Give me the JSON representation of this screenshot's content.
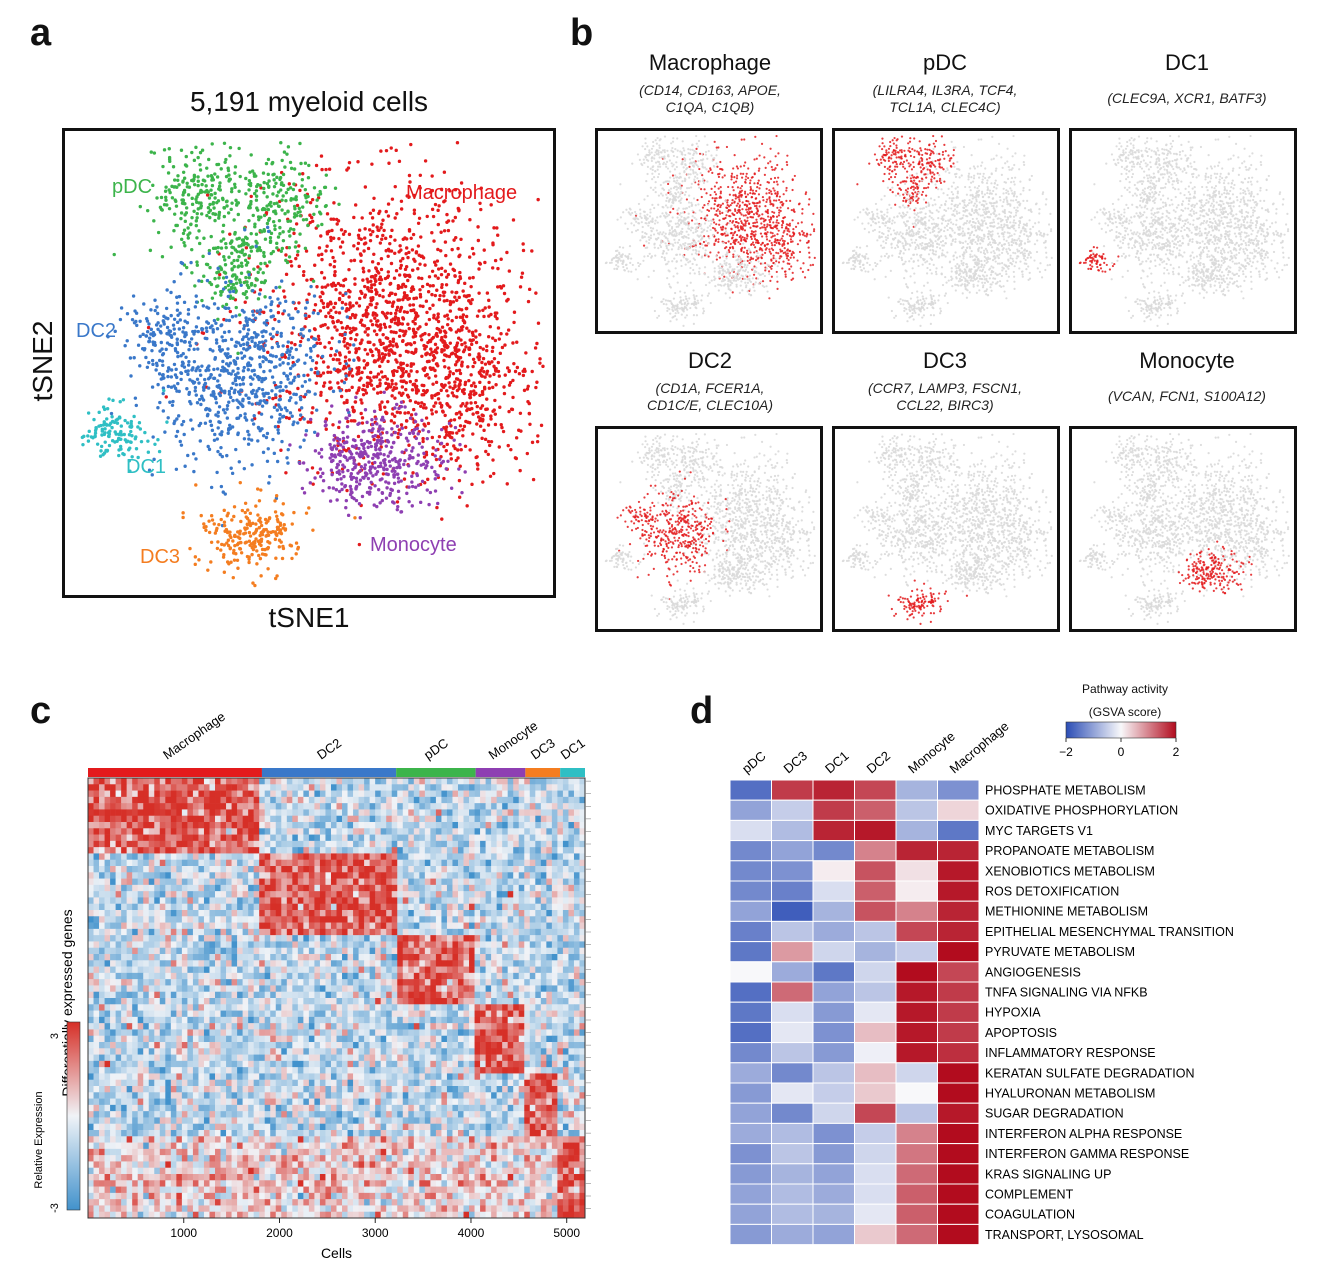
{
  "panel_a": {
    "letter": "a",
    "title": "5,191 myeloid cells",
    "xlabel": "tSNE1",
    "ylabel": "tSNE2",
    "clusters": [
      {
        "name": "pDC",
        "color": "#3cb44b"
      },
      {
        "name": "Macrophage",
        "color": "#e31a1c"
      },
      {
        "name": "DC2",
        "color": "#3a78c9"
      },
      {
        "name": "DC1",
        "color": "#2fbfc4"
      },
      {
        "name": "DC3",
        "color": "#f47d20"
      },
      {
        "name": "Monocyte",
        "color": "#8e3fb2"
      }
    ]
  },
  "panel_b": {
    "letter": "b",
    "plots": [
      {
        "title": "Macrophage",
        "markers": [
          "(CD14, CD163, APOE,",
          "C1QA, C1QB)"
        ]
      },
      {
        "title": "pDC",
        "markers": [
          "(LILRA4, IL3RA, TCF4,",
          "TCL1A, CLEC4C)"
        ]
      },
      {
        "title": "DC1",
        "markers": [
          "(CLEC9A, XCR1, BATF3)"
        ]
      },
      {
        "title": "DC2",
        "markers": [
          "(CD1A, FCER1A,",
          "CD1C/E, CLEC10A)"
        ]
      },
      {
        "title": "DC3",
        "markers": [
          "(CCR7, LAMP3, FSCN1,",
          "CCL22, BIRC3)"
        ]
      },
      {
        "title": "Monocyte",
        "markers": [
          "(VCAN, FCN1, S100A12)"
        ]
      }
    ]
  },
  "panel_c": {
    "letter": "c",
    "groups": [
      {
        "name": "Macrophage",
        "color": "#e31a1c"
      },
      {
        "name": "DC2",
        "color": "#3a78c9"
      },
      {
        "name": "pDC",
        "color": "#3cb44b"
      },
      {
        "name": "Monocyte",
        "color": "#8e3fb2"
      },
      {
        "name": "DC3",
        "color": "#f47d20"
      },
      {
        "name": "DC1",
        "color": "#2fbfc4"
      }
    ],
    "ylabel": "Differentially expressed genes",
    "xlabel": "Cells",
    "xticks": [
      "1000",
      "2000",
      "3000",
      "4000",
      "5000"
    ],
    "colorbar_label": "Relative Expression",
    "colorbar_max": "3",
    "colorbar_min": "-3"
  },
  "panel_d": {
    "letter": "d",
    "legend_title_1": "Pathway activity",
    "legend_title_2": "(GSVA score)",
    "legend_ticks": [
      "−2",
      "0",
      "2"
    ],
    "columns": [
      "pDC",
      "DC3",
      "DC1",
      "DC2",
      "Monocyte",
      "Macrophage"
    ],
    "rows": [
      {
        "name": "PHOSPHATE METABOLISM",
        "values": [
          -1.6,
          1.6,
          1.8,
          1.5,
          -0.8,
          -1.2
        ]
      },
      {
        "name": "OXIDATIVE PHOSPHORYLATION",
        "values": [
          -1.0,
          -0.5,
          1.6,
          1.3,
          -0.6,
          0.3
        ]
      },
      {
        "name": "MYC TARGETS V1",
        "values": [
          -0.3,
          -0.7,
          1.8,
          1.9,
          -0.8,
          -1.5
        ]
      },
      {
        "name": "PROPANOATE METABOLISM",
        "values": [
          -1.3,
          -1.0,
          -1.3,
          1.0,
          1.8,
          1.8
        ]
      },
      {
        "name": "XENOBIOTICS METABOLISM",
        "values": [
          -1.3,
          -1.2,
          0.1,
          1.4,
          0.2,
          1.9
        ]
      },
      {
        "name": "ROS DETOXIFICATION",
        "values": [
          -1.3,
          -1.4,
          -0.3,
          1.3,
          0.1,
          1.9
        ]
      },
      {
        "name": "METHIONINE METABOLISM",
        "values": [
          -1.0,
          -1.8,
          -0.8,
          1.4,
          1.0,
          1.8
        ]
      },
      {
        "name": "EPITHELIAL MESENCHYMAL TRANSITION",
        "values": [
          -1.4,
          -0.6,
          -0.9,
          -0.6,
          1.5,
          1.8
        ]
      },
      {
        "name": "PYRUVATE METABOLISM",
        "values": [
          -1.5,
          0.8,
          -0.4,
          -0.8,
          -0.5,
          2.0
        ]
      },
      {
        "name": "ANGIOGENESIS",
        "values": [
          0.0,
          -0.9,
          -1.5,
          -0.4,
          2.0,
          1.5
        ]
      },
      {
        "name": "TNFA SIGNALING VIA NFKB",
        "values": [
          -1.6,
          1.2,
          -1.0,
          -0.6,
          1.9,
          1.6
        ]
      },
      {
        "name": "HYPOXIA",
        "values": [
          -1.5,
          -0.3,
          -1.1,
          -0.2,
          1.9,
          1.6
        ]
      },
      {
        "name": "APOPTOSIS",
        "values": [
          -1.6,
          -0.2,
          -1.2,
          0.5,
          1.9,
          1.6
        ]
      },
      {
        "name": "INFLAMMATORY RESPONSE",
        "values": [
          -1.3,
          -0.6,
          -1.1,
          -0.1,
          1.9,
          1.7
        ]
      },
      {
        "name": "KERATAN SULFATE DEGRADATION",
        "values": [
          -0.9,
          -1.3,
          -0.6,
          0.5,
          -0.4,
          2.0
        ]
      },
      {
        "name": "HYALURONAN METABOLISM",
        "values": [
          -1.1,
          -0.2,
          -0.5,
          0.4,
          0.0,
          2.0
        ]
      },
      {
        "name": "SUGAR DEGRADATION",
        "values": [
          -1.0,
          -1.3,
          -0.4,
          1.5,
          -0.6,
          1.9
        ]
      },
      {
        "name": "INTERFERON ALPHA RESPONSE",
        "values": [
          -0.9,
          -0.7,
          -1.2,
          -0.5,
          1.0,
          2.0
        ]
      },
      {
        "name": "INTERFERON GAMMA RESPONSE",
        "values": [
          -1.2,
          -0.6,
          -1.1,
          -0.4,
          1.1,
          2.0
        ]
      },
      {
        "name": "KRAS SIGNALING UP",
        "values": [
          -1.1,
          -0.8,
          -1.0,
          -0.3,
          1.2,
          2.0
        ]
      },
      {
        "name": "COMPLEMENT",
        "values": [
          -1.0,
          -0.7,
          -0.9,
          -0.3,
          1.3,
          2.0
        ]
      },
      {
        "name": "COAGULATION",
        "values": [
          -1.0,
          -0.7,
          -0.8,
          -0.2,
          1.3,
          2.0
        ]
      },
      {
        "name": "TRANSPORT, LYSOSOMAL",
        "values": [
          -1.1,
          -0.9,
          -1.0,
          0.4,
          1.2,
          2.0
        ]
      }
    ]
  }
}
